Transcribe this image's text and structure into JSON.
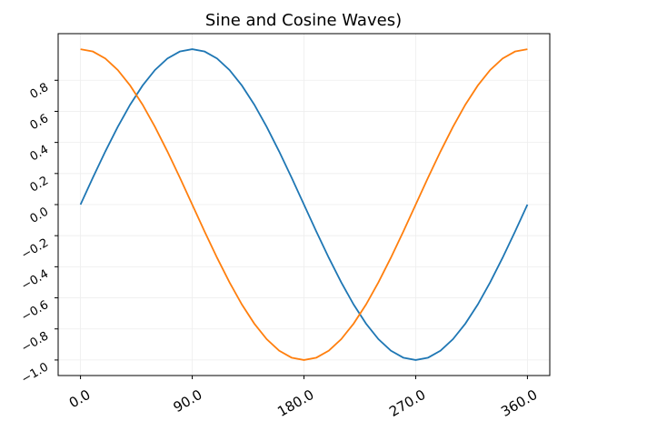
{
  "chart_data": {
    "type": "line",
    "title": "Sine and Cosine Waves)",
    "x": [
      0,
      10,
      20,
      30,
      40,
      50,
      60,
      70,
      80,
      90,
      100,
      110,
      120,
      130,
      140,
      150,
      160,
      170,
      180,
      190,
      200,
      210,
      220,
      230,
      240,
      250,
      260,
      270,
      280,
      290,
      300,
      310,
      320,
      330,
      340,
      350,
      360
    ],
    "series": [
      {
        "color": "#1f77b4",
        "values": [
          0,
          0.174,
          0.342,
          0.5,
          0.643,
          0.766,
          0.866,
          0.94,
          0.985,
          1,
          0.985,
          0.94,
          0.866,
          0.766,
          0.643,
          0.5,
          0.342,
          0.174,
          0,
          -0.174,
          -0.342,
          -0.5,
          -0.643,
          -0.766,
          -0.866,
          -0.94,
          -0.985,
          -1,
          -0.985,
          -0.94,
          -0.866,
          -0.766,
          -0.643,
          -0.5,
          -0.342,
          -0.174,
          0
        ]
      },
      {
        "color": "#ff7f0e",
        "values": [
          1,
          0.985,
          0.94,
          0.866,
          0.766,
          0.643,
          0.5,
          0.342,
          0.174,
          0,
          -0.174,
          -0.342,
          -0.5,
          -0.643,
          -0.766,
          -0.866,
          -0.94,
          -0.985,
          -1,
          -0.985,
          -0.94,
          -0.866,
          -0.766,
          -0.643,
          -0.5,
          -0.342,
          -0.174,
          0,
          0.174,
          0.342,
          0.5,
          0.643,
          0.766,
          0.866,
          0.94,
          0.985,
          1
        ]
      }
    ],
    "xlim": [
      -18,
      378
    ],
    "ylim": [
      -1.1,
      1.1
    ],
    "xticks": [
      {
        "value": 0,
        "label": "0.0"
      },
      {
        "value": 90,
        "label": "90.0"
      },
      {
        "value": 180,
        "label": "180.0"
      },
      {
        "value": 270,
        "label": "270.0"
      },
      {
        "value": 360,
        "label": "360.0"
      }
    ],
    "yticks": [
      {
        "value": -1,
        "label": "−1.0"
      },
      {
        "value": -0.8,
        "label": "−0.8"
      },
      {
        "value": -0.6,
        "label": "−0.6"
      },
      {
        "value": -0.4,
        "label": "−0.4"
      },
      {
        "value": -0.2,
        "label": "−0.2"
      },
      {
        "value": 0,
        "label": "0.0"
      },
      {
        "value": 0.2,
        "label": "0.2"
      },
      {
        "value": 0.4,
        "label": "0.4"
      },
      {
        "value": 0.6,
        "label": "0.6"
      },
      {
        "value": 0.8,
        "label": "0.8"
      }
    ],
    "grid": true
  }
}
